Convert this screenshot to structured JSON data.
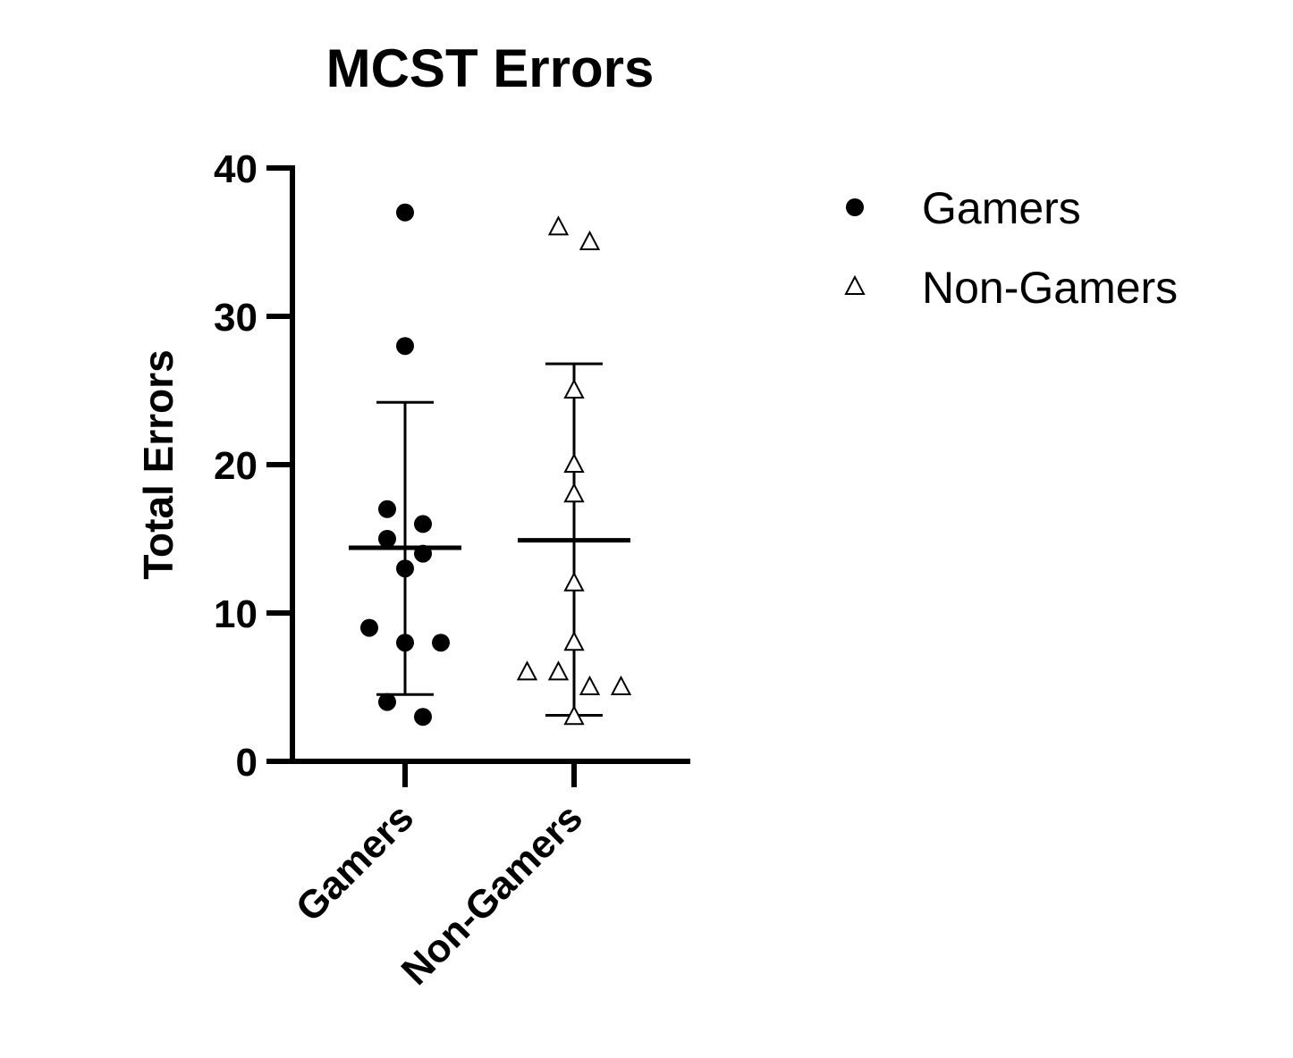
{
  "chart_data": {
    "type": "scatter",
    "title": "MCST Errors",
    "xlabel": "",
    "ylabel": "Total Errors",
    "ylim": [
      0,
      40
    ],
    "yticks": [
      "0",
      "10",
      "20",
      "30",
      "40"
    ],
    "categories": [
      "Gamers",
      "Non-Gamers"
    ],
    "grid": false,
    "legend_position": "top-right",
    "series": [
      {
        "name": "Gamers",
        "marker": "filled-circle",
        "color": "#000000",
        "category": "Gamers",
        "values": [
          37,
          28,
          17,
          16,
          15,
          14,
          13,
          9,
          8,
          8,
          4,
          3
        ],
        "mean": 14.4,
        "sd_upper": 24.2,
        "sd_lower": 4.5
      },
      {
        "name": "Non-Gamers",
        "marker": "open-triangle",
        "color": "#000000",
        "category": "Non-Gamers",
        "values": [
          36,
          35,
          25,
          20,
          18,
          12,
          8,
          6,
          6,
          5,
          5,
          3
        ],
        "mean": 14.9,
        "sd_upper": 26.8,
        "sd_lower": 3.1
      }
    ]
  }
}
